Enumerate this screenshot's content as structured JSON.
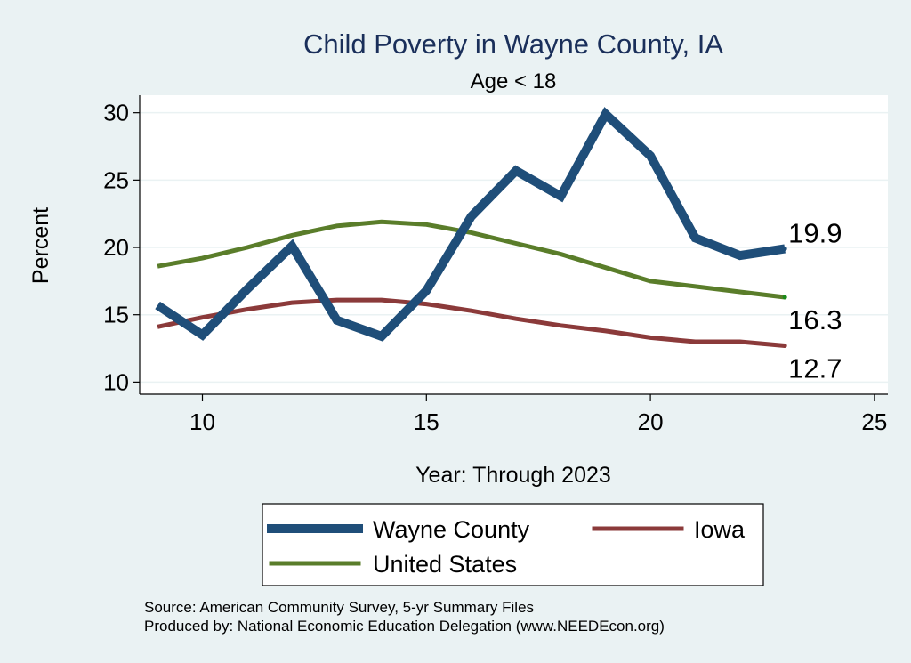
{
  "chart_data": {
    "type": "line",
    "title": "Child Poverty in Wayne County, IA",
    "subtitle": "Age < 18",
    "xlabel": "Year: Through 2023",
    "ylabel": "Percent",
    "xlim": [
      8.6,
      25.3
    ],
    "ylim": [
      9.1,
      31.3
    ],
    "xticks": [
      10,
      15,
      20,
      25
    ],
    "yticks": [
      10,
      15,
      20,
      25,
      30
    ],
    "grid": true,
    "legend_position": "bottom",
    "x": [
      9,
      10,
      11,
      12,
      13,
      14,
      15,
      16,
      17,
      18,
      19,
      20,
      21,
      22,
      23
    ],
    "series": [
      {
        "name": "Wayne County",
        "color": "#1f4e79",
        "values": [
          15.7,
          13.5,
          16.9,
          20.1,
          14.6,
          13.4,
          16.8,
          22.3,
          25.7,
          23.8,
          29.9,
          26.8,
          20.7,
          19.4,
          19.9
        ],
        "end_label": "19.9"
      },
      {
        "name": "Iowa",
        "color": "#8b3a3a",
        "values": [
          14.1,
          14.8,
          15.4,
          15.9,
          16.1,
          16.1,
          15.8,
          15.3,
          14.7,
          14.2,
          13.8,
          13.3,
          13.0,
          13.0,
          12.7
        ],
        "end_label": "12.7"
      },
      {
        "name": "United States",
        "color": "#5a7d2a",
        "values": [
          18.6,
          19.2,
          20.0,
          20.9,
          21.6,
          21.9,
          21.7,
          21.1,
          20.3,
          19.5,
          18.5,
          17.5,
          17.1,
          16.7,
          16.3
        ],
        "end_label": "16.3"
      }
    ],
    "notes": [
      "Source: American Community Survey, 5-yr Summary Files",
      "Produced by: National Economic Education Delegation (www.NEEDEcon.org)"
    ]
  }
}
